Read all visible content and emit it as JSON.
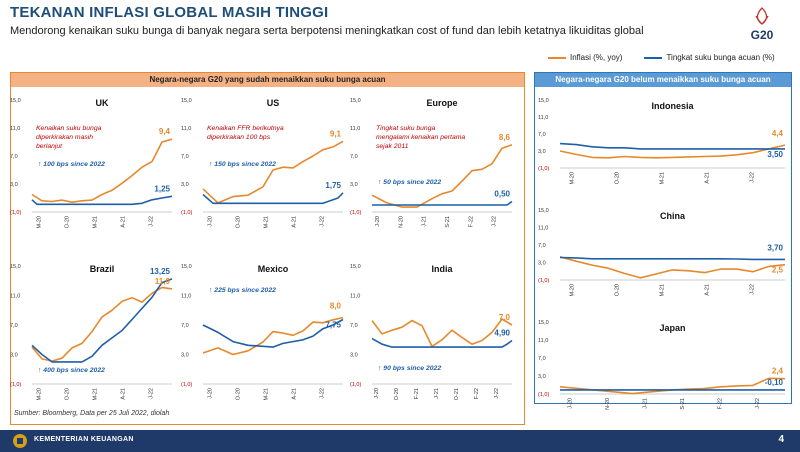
{
  "header": {
    "title": "TEKANAN INFLASI GLOBAL MASIH TINGGI",
    "subtitle": "Mendorong kenaikan suku bunga di banyak negara serta berpotensi meningkatkan cost of fund dan lebih ketatnya likuiditas global",
    "logo_text": "G20"
  },
  "legend": {
    "inflation": "Inflasi (%, yoy)",
    "rate": "Tingkat suku bunga acuan (%)",
    "inflation_color": "#e6892b",
    "rate_color": "#1f5fa8"
  },
  "left_panel": {
    "title": "Negara-negara G20 yang sudah menaikkan suku bunga acuan"
  },
  "right_panel": {
    "title": "Negara-negara G20 belum menaikkan suku bunga acuan"
  },
  "source": "Sumber: Bloomberg, Data per 25 Juli 2022, diolah",
  "footer": {
    "org": "KEMENTERIAN KEUANGAN",
    "page": "4"
  },
  "chart_data": [
    {
      "type": "line",
      "title": "UK",
      "yticks": [
        "15,0",
        "11,0",
        "7,0",
        "3,0",
        "(1,0)"
      ],
      "ylim": [
        -1,
        15
      ],
      "xticks": [
        "M-20",
        "O-20",
        "M-21",
        "A-21",
        "J-22"
      ],
      "x_range": [
        0,
        28
      ],
      "annotation": "Kenaikan suku bunga diperkirakan masih berlanjut",
      "bps_note": "↑ 100 bps since 2022",
      "inflation_label": "9,4",
      "rate_label": "1,25",
      "series": [
        {
          "name": "Inflasi (%, yoy)",
          "points": [
            [
              0,
              1.5
            ],
            [
              2,
              0.6
            ],
            [
              4,
              0.5
            ],
            [
              6,
              0.7
            ],
            [
              8,
              0.4
            ],
            [
              10,
              0.6
            ],
            [
              12,
              0.7
            ],
            [
              14,
              1.5
            ],
            [
              16,
              2.1
            ],
            [
              18,
              3.1
            ],
            [
              20,
              4.2
            ],
            [
              22,
              5.4
            ],
            [
              24,
              6.2
            ],
            [
              26,
              9.0
            ],
            [
              28,
              9.4
            ]
          ]
        },
        {
          "name": "Tingkat suku bunga acuan (%)",
          "points": [
            [
              0,
              0.75
            ],
            [
              1,
              0.1
            ],
            [
              20,
              0.1
            ],
            [
              22,
              0.25
            ],
            [
              23,
              0.5
            ],
            [
              24,
              0.75
            ],
            [
              26,
              1.0
            ],
            [
              28,
              1.25
            ]
          ]
        }
      ]
    },
    {
      "type": "line",
      "title": "US",
      "yticks": [
        "15,0",
        "11,0",
        "7,0",
        "3,0",
        "(1,0)"
      ],
      "ylim": [
        -1,
        15
      ],
      "xticks": [
        "J-20",
        "O-20",
        "M-21",
        "A-21",
        "J-22"
      ],
      "x_range": [
        0,
        28
      ],
      "annotation": "Kenaikan FFR berikutnya diperkirakan 100 bps",
      "bps_note": "↑ 150 bps since 2022",
      "inflation_label": "9,1",
      "rate_label": "1,75",
      "series": [
        {
          "name": "Inflasi (%, yoy)",
          "points": [
            [
              0,
              2.3
            ],
            [
              3,
              0.3
            ],
            [
              6,
              1.2
            ],
            [
              9,
              1.4
            ],
            [
              12,
              2.6
            ],
            [
              14,
              5.0
            ],
            [
              16,
              5.4
            ],
            [
              18,
              5.3
            ],
            [
              20,
              6.2
            ],
            [
              22,
              7.0
            ],
            [
              24,
              7.9
            ],
            [
              26,
              8.3
            ],
            [
              28,
              9.1
            ]
          ]
        },
        {
          "name": "Tingkat suku bunga acuan (%)",
          "points": [
            [
              0,
              1.5
            ],
            [
              2,
              0.25
            ],
            [
              24,
              0.25
            ],
            [
              25,
              0.5
            ],
            [
              27,
              1.0
            ],
            [
              28,
              1.75
            ]
          ]
        }
      ]
    },
    {
      "type": "line",
      "title": "Europe",
      "yticks": [
        "15,0",
        "11,0",
        "7,0",
        "3,0",
        "(1,0)"
      ],
      "ylim": [
        -1,
        15
      ],
      "xticks": [
        "J-20",
        "N-20",
        "J-21",
        "S-21",
        "F-22",
        "J-22"
      ],
      "x_range": [
        0,
        28
      ],
      "annotation": "Tingkat suku bunga mengalami kenaikan pertama sejak 2011",
      "bps_note": "↑ 50 bps since 2022",
      "inflation_label": "8,6",
      "rate_label": "0,50",
      "series": [
        {
          "name": "Inflasi (%, yoy)",
          "points": [
            [
              0,
              1.4
            ],
            [
              3,
              0.3
            ],
            [
              6,
              -0.3
            ],
            [
              9,
              -0.3
            ],
            [
              12,
              0.9
            ],
            [
              14,
              1.6
            ],
            [
              16,
              2.0
            ],
            [
              18,
              3.4
            ],
            [
              20,
              4.9
            ],
            [
              22,
              5.1
            ],
            [
              24,
              5.9
            ],
            [
              26,
              8.1
            ],
            [
              28,
              8.6
            ]
          ]
        },
        {
          "name": "Tingkat suku bunga acuan (%)",
          "points": [
            [
              0,
              0
            ],
            [
              27,
              0
            ],
            [
              28,
              0.5
            ]
          ]
        }
      ]
    },
    {
      "type": "line",
      "title": "Brazil",
      "yticks": [
        "15,0",
        "11,0",
        "7,0",
        "3,0",
        "(1,0)"
      ],
      "ylim": [
        -1,
        15
      ],
      "xticks": [
        "M-20",
        "O-20",
        "M-21",
        "A-21",
        "J-22"
      ],
      "x_range": [
        0,
        28
      ],
      "bps_note": "↑ 400 bps since 2022",
      "inflation_label": "11,9",
      "rate_label": "13,25",
      "series": [
        {
          "name": "Inflasi (%, yoy)",
          "points": [
            [
              0,
              4.0
            ],
            [
              2,
              2.4
            ],
            [
              4,
              2.1
            ],
            [
              6,
              2.5
            ],
            [
              8,
              3.9
            ],
            [
              10,
              4.5
            ],
            [
              12,
              6.1
            ],
            [
              14,
              8.1
            ],
            [
              16,
              9.0
            ],
            [
              18,
              10.2
            ],
            [
              20,
              10.7
            ],
            [
              22,
              10.1
            ],
            [
              24,
              11.3
            ],
            [
              26,
              12.1
            ],
            [
              28,
              11.9
            ]
          ]
        },
        {
          "name": "Tingkat suku bunga acuan (%)",
          "points": [
            [
              0,
              4.25
            ],
            [
              2,
              3.0
            ],
            [
              4,
              2.0
            ],
            [
              10,
              2.0
            ],
            [
              12,
              2.75
            ],
            [
              14,
              4.25
            ],
            [
              16,
              5.25
            ],
            [
              18,
              6.25
            ],
            [
              20,
              7.75
            ],
            [
              22,
              9.25
            ],
            [
              24,
              10.75
            ],
            [
              26,
              12.75
            ],
            [
              28,
              13.25
            ]
          ]
        }
      ]
    },
    {
      "type": "line",
      "title": "Mexico",
      "yticks": [
        "15,0",
        "11,0",
        "7,0",
        "3,0",
        "(1,0)"
      ],
      "ylim": [
        -1,
        15
      ],
      "xticks": [
        "J-20",
        "O-20",
        "M-21",
        "A-21",
        "J-22"
      ],
      "x_range": [
        0,
        28
      ],
      "bps_note": "↑ 225 bps since 2022",
      "inflation_label": "8,0",
      "rate_label": "7,75",
      "series": [
        {
          "name": "Inflasi (%, yoy)",
          "points": [
            [
              0,
              3.2
            ],
            [
              3,
              3.9
            ],
            [
              6,
              3.0
            ],
            [
              9,
              3.5
            ],
            [
              12,
              4.7
            ],
            [
              14,
              6.1
            ],
            [
              16,
              5.9
            ],
            [
              18,
              5.6
            ],
            [
              20,
              6.2
            ],
            [
              22,
              7.4
            ],
            [
              24,
              7.3
            ],
            [
              26,
              7.7
            ],
            [
              28,
              8.0
            ]
          ]
        },
        {
          "name": "Tingkat suku bunga acuan (%)",
          "points": [
            [
              0,
              7.0
            ],
            [
              3,
              6.0
            ],
            [
              6,
              4.75
            ],
            [
              9,
              4.25
            ],
            [
              14,
              4.0
            ],
            [
              16,
              4.5
            ],
            [
              18,
              4.75
            ],
            [
              20,
              5.0
            ],
            [
              22,
              5.5
            ],
            [
              24,
              6.5
            ],
            [
              26,
              7.0
            ],
            [
              28,
              7.75
            ]
          ]
        }
      ]
    },
    {
      "type": "line",
      "title": "India",
      "yticks": [
        "15,0",
        "11,0",
        "7,0",
        "3,0",
        "(1,0)"
      ],
      "ylim": [
        -1,
        15
      ],
      "xticks": [
        "J-20",
        "O-20",
        "F-21",
        "J-21",
        "O-21",
        "F-22",
        "J-22"
      ],
      "x_range": [
        0,
        28
      ],
      "bps_note": "↑ 90 bps since 2022",
      "inflation_label": "7,0",
      "rate_label": "4,90",
      "series": [
        {
          "name": "Inflasi (%, yoy)",
          "points": [
            [
              0,
              7.6
            ],
            [
              2,
              5.8
            ],
            [
              4,
              6.3
            ],
            [
              6,
              6.7
            ],
            [
              8,
              7.6
            ],
            [
              10,
              6.9
            ],
            [
              12,
              4.1
            ],
            [
              14,
              5.0
            ],
            [
              16,
              6.3
            ],
            [
              18,
              5.3
            ],
            [
              20,
              4.4
            ],
            [
              22,
              4.9
            ],
            [
              24,
              6.0
            ],
            [
              26,
              7.8
            ],
            [
              28,
              7.0
            ]
          ]
        },
        {
          "name": "Tingkat suku bunga acuan (%)",
          "points": [
            [
              0,
              5.15
            ],
            [
              2,
              4.4
            ],
            [
              4,
              4.0
            ],
            [
              26,
              4.0
            ],
            [
              27,
              4.4
            ],
            [
              28,
              4.9
            ]
          ]
        }
      ]
    },
    {
      "type": "line",
      "title": "Indonesia",
      "yticks": [
        "15,0",
        "11,0",
        "7,0",
        "3,0",
        "(1,0)"
      ],
      "ylim": [
        -1,
        15
      ],
      "xticks": [
        "M-20",
        "O-20",
        "M-21",
        "A-21",
        "J-22"
      ],
      "x_range": [
        0,
        28
      ],
      "inflation_label": "4,4",
      "rate_label": "3,50",
      "series": [
        {
          "name": "Inflasi (%, yoy)",
          "points": [
            [
              0,
              3.0
            ],
            [
              2,
              2.2
            ],
            [
              4,
              1.5
            ],
            [
              6,
              1.4
            ],
            [
              8,
              1.7
            ],
            [
              10,
              1.5
            ],
            [
              12,
              1.4
            ],
            [
              14,
              1.5
            ],
            [
              16,
              1.6
            ],
            [
              18,
              1.7
            ],
            [
              20,
              1.8
            ],
            [
              22,
              2.1
            ],
            [
              24,
              2.6
            ],
            [
              26,
              3.5
            ],
            [
              28,
              4.4
            ]
          ]
        },
        {
          "name": "Tingkat suku bunga acuan (%)",
          "points": [
            [
              0,
              4.75
            ],
            [
              2,
              4.5
            ],
            [
              4,
              4.0
            ],
            [
              6,
              3.75
            ],
            [
              8,
              3.75
            ],
            [
              10,
              3.5
            ],
            [
              28,
              3.5
            ]
          ]
        }
      ]
    },
    {
      "type": "line",
      "title": "China",
      "yticks": [
        "15,0",
        "11,0",
        "7,0",
        "3,0",
        "(1,0)"
      ],
      "ylim": [
        -1,
        15
      ],
      "xticks": [
        "M-20",
        "O-20",
        "M-21",
        "A-21",
        "J-22"
      ],
      "x_range": [
        0,
        28
      ],
      "inflation_label": "2,5",
      "rate_label": "3,70",
      "series": [
        {
          "name": "Inflasi (%, yoy)",
          "points": [
            [
              0,
              4.3
            ],
            [
              2,
              3.3
            ],
            [
              4,
              2.4
            ],
            [
              6,
              1.7
            ],
            [
              8,
              0.5
            ],
            [
              10,
              -0.5
            ],
            [
              12,
              0.4
            ],
            [
              14,
              1.3
            ],
            [
              16,
              1.1
            ],
            [
              18,
              0.7
            ],
            [
              20,
              1.5
            ],
            [
              22,
              1.5
            ],
            [
              24,
              0.9
            ],
            [
              26,
              2.1
            ],
            [
              28,
              2.5
            ]
          ]
        },
        {
          "name": "Tingkat suku bunga acuan (%)",
          "points": [
            [
              0,
              4.15
            ],
            [
              2,
              4.05
            ],
            [
              4,
              3.85
            ],
            [
              20,
              3.85
            ],
            [
              22,
              3.8
            ],
            [
              24,
              3.7
            ],
            [
              28,
              3.7
            ]
          ]
        }
      ]
    },
    {
      "type": "line",
      "title": "Japan",
      "yticks": [
        "15,0",
        "11,0",
        "7,0",
        "3,0",
        "(1,0)"
      ],
      "ylim": [
        -1,
        15
      ],
      "xticks": [
        "J-20",
        "N-20",
        "J-21",
        "S-21",
        "F-22",
        "J-22"
      ],
      "x_range": [
        0,
        28
      ],
      "inflation_label": "2,4",
      "rate_label": "-0,10",
      "series": [
        {
          "name": "Inflasi (%, yoy)",
          "points": [
            [
              0,
              0.6
            ],
            [
              3,
              0.1
            ],
            [
              6,
              -0.4
            ],
            [
              9,
              -0.9
            ],
            [
              12,
              -0.4
            ],
            [
              14,
              -0.1
            ],
            [
              16,
              0.1
            ],
            [
              18,
              0.2
            ],
            [
              20,
              0.6
            ],
            [
              22,
              0.8
            ],
            [
              24,
              0.9
            ],
            [
              26,
              2.5
            ],
            [
              28,
              2.4
            ]
          ]
        },
        {
          "name": "Tingkat suku bunga acuan (%)",
          "points": [
            [
              0,
              -0.1
            ],
            [
              28,
              -0.1
            ]
          ]
        }
      ]
    }
  ]
}
